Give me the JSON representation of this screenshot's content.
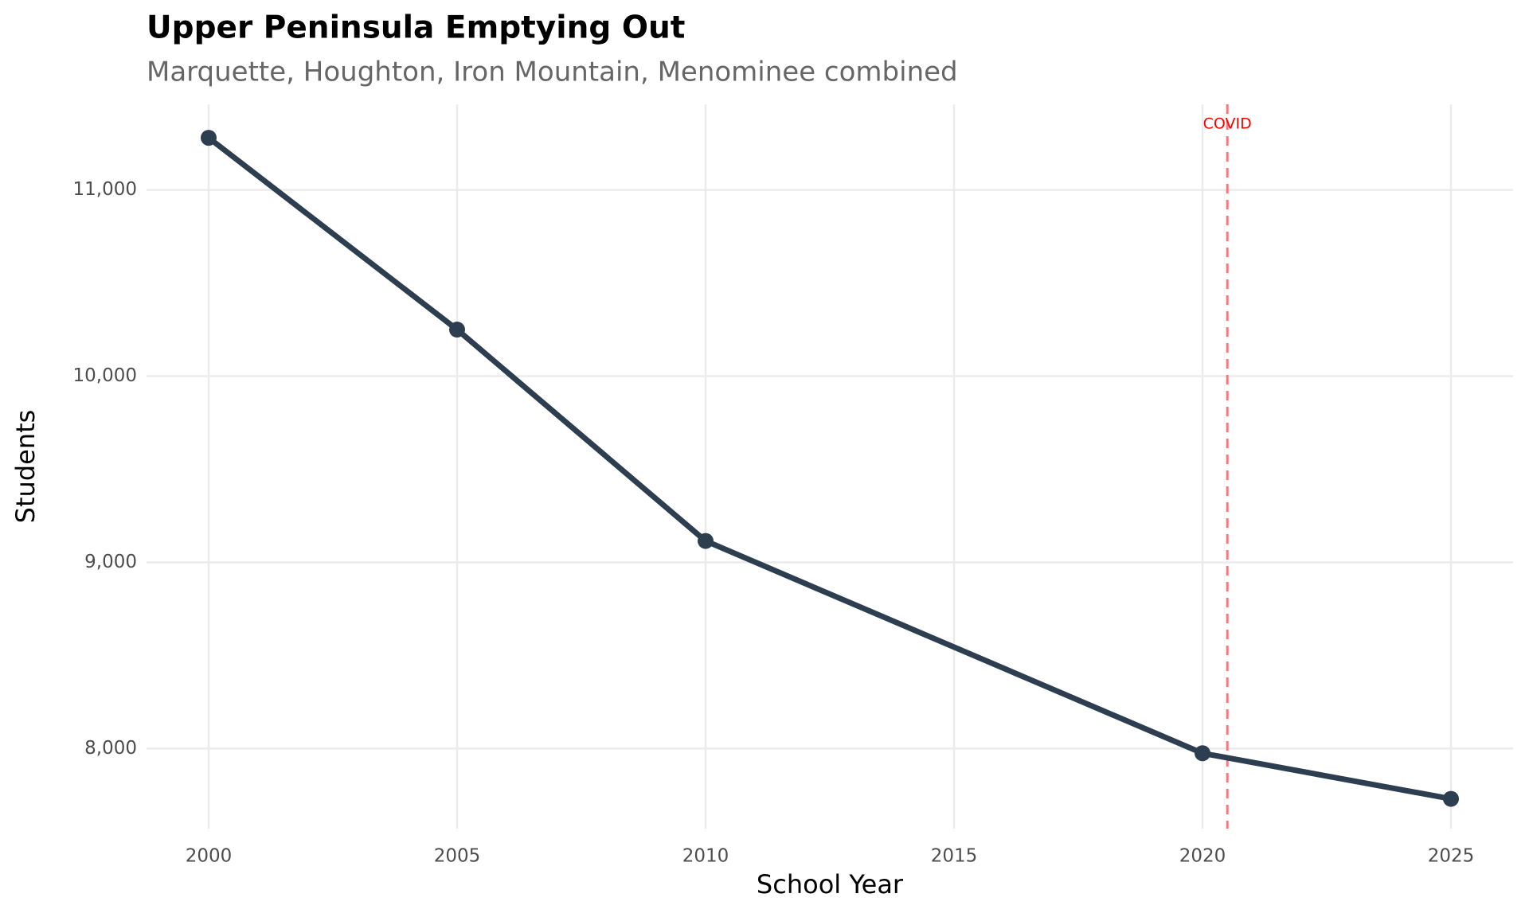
{
  "chart_data": {
    "type": "line",
    "title": "Upper Peninsula Emptying Out",
    "subtitle": "Marquette, Houghton, Iron Mountain, Menominee combined",
    "x_label": "School Year",
    "y_label": "Students",
    "x": [
      2000,
      2005,
      2010,
      2020,
      2025
    ],
    "values": [
      11280,
      10250,
      9115,
      7975,
      7730
    ],
    "color": "#2c3e50",
    "xlim": [
      1998.75,
      2026.25
    ],
    "ylim": [
      7570,
      11460
    ],
    "xticks": [
      2000,
      2005,
      2010,
      2015,
      2020,
      2025
    ],
    "yticks": [
      {
        "value": 8000,
        "label": "8,000"
      },
      {
        "value": 9000,
        "label": "9,000"
      },
      {
        "value": 10000,
        "label": "10,000"
      },
      {
        "value": 11000,
        "label": "11,000"
      }
    ],
    "grid": true,
    "annotations": [
      {
        "x": 2020.5,
        "label": "COVID",
        "color": "#ff0000",
        "line_color": "#f8767d"
      }
    ]
  }
}
